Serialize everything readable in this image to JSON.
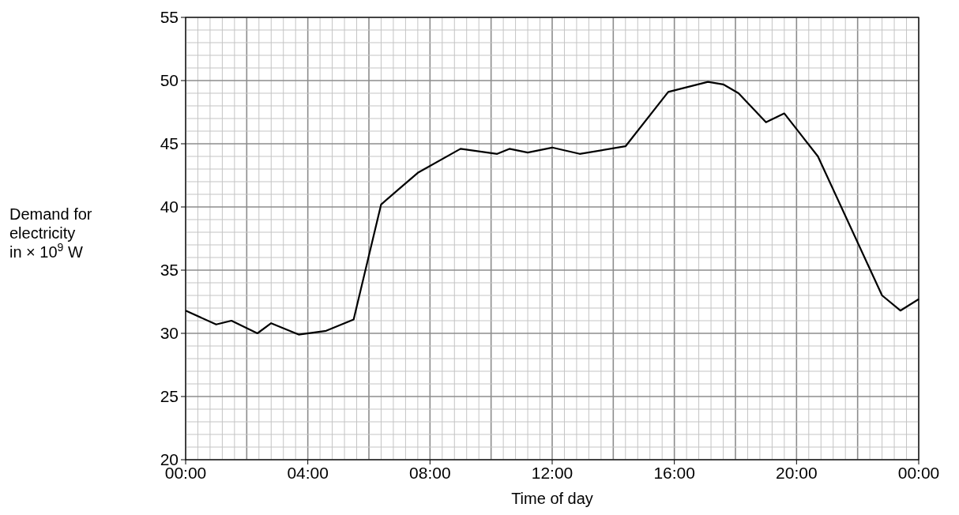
{
  "chart_data": {
    "type": "line",
    "xlabel": "Time of day",
    "ylabel": "Demand for electricity in × 10$^{9}$ W",
    "x": [
      0,
      1,
      1.5,
      2.35,
      2.8,
      3.7,
      4.6,
      5.5,
      6.4,
      7.6,
      9,
      10.2,
      10.6,
      11.2,
      12,
      12.9,
      14.4,
      15.8,
      17.1,
      17.6,
      18.1,
      19,
      19.6,
      20.7,
      22.8,
      23.4,
      24
    ],
    "series": [
      {
        "color": "#000000",
        "values": [
          31.8,
          30.7,
          31,
          30,
          30.8,
          29.9,
          30.2,
          31.1,
          40.2,
          42.7,
          44.6,
          44.2,
          44.6,
          44.3,
          44.7,
          44.2,
          44.8,
          49.1,
          49.9,
          49.7,
          49,
          46.7,
          47.4,
          44,
          33,
          31.8,
          32.7
        ]
      }
    ],
    "xlim": [
      0,
      24
    ],
    "ylim": [
      20,
      55
    ],
    "xticks": [
      {
        "value": 0,
        "label": "00:00"
      },
      {
        "value": 4,
        "label": "04:00"
      },
      {
        "value": 8,
        "label": "08:00"
      },
      {
        "value": 12,
        "label": "12:00"
      },
      {
        "value": 16,
        "label": "16:00"
      },
      {
        "value": 20,
        "label": "20:00"
      },
      {
        "value": 24,
        "label": "00:00"
      }
    ],
    "yticks": [
      20,
      25,
      30,
      35,
      40,
      45,
      50,
      55
    ],
    "grid": true,
    "marker": "none",
    "line_style": "solid"
  }
}
